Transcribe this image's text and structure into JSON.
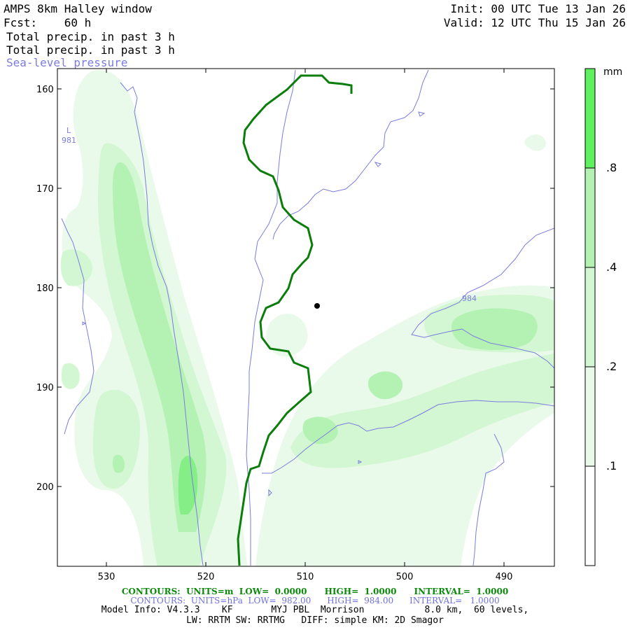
{
  "header": {
    "title": "AMPS 8km Halley window",
    "forecast": "Fcst:    60 h",
    "init": "Init: 00 UTC Tue 13 Jan 26",
    "valid": "Valid: 12 UTC Thu 15 Jan 26",
    "field_line_1": "Total precip. in past 3 h",
    "field_line_2": "Total precip. in past 3 h",
    "overlay_title": "Sea-level pressure"
  },
  "colorbar": {
    "unit": "mm",
    "levels": [
      {
        "label": "",
        "color": "#ffffff"
      },
      {
        "label": ".1",
        "color": "#eafaea"
      },
      {
        "label": ".2",
        "color": "#d2f7d2"
      },
      {
        "label": ".4",
        "color": "#b4f2b4"
      },
      {
        "label": ".8",
        "color": "#86ee86"
      },
      {
        "label": "",
        "color": "#5ef05e"
      }
    ]
  },
  "map": {
    "y_ticks": [
      "160",
      "170",
      "180",
      "190",
      "200"
    ],
    "x_ticks": [
      "530",
      "520",
      "510",
      "500",
      "490"
    ],
    "pressure_labels": [
      {
        "text": "L",
        "name": "low-marker"
      },
      {
        "text": "981",
        "name": "low-value-label"
      },
      {
        "text": "984",
        "name": "isobar-984-label"
      }
    ],
    "colors": {
      "precip_contour": "#0b7d0b",
      "isobar": "#7b7be0",
      "station": "#000000"
    }
  },
  "footer": {
    "contours_precip": "CONTOURS:  UNITS=m  LOW=  0.0000      HIGH=  1.0000      INTERVAL=  1.0000",
    "contours_pressure": "CONTOURS:  UNITS=hPa  LOW=  982.00      HIGH=  984.00      INTERVAL=   1.0000",
    "model_info": "Model Info: V4.3.3    KF       MYJ PBL  Morrison           8.0 km,  60 levels,",
    "physics": "LW: RRTM SW: RRTMG   DIFF: simple KM: 2D Smagor"
  }
}
